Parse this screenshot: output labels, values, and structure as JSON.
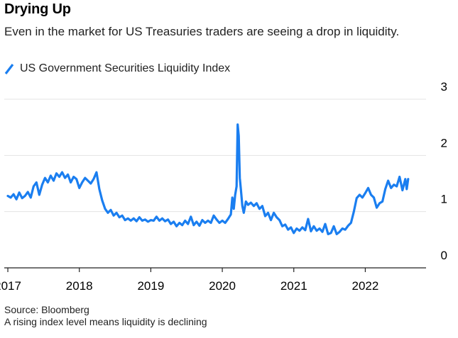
{
  "title": "Drying Up",
  "subtitle": "Even in the market for US Treasuries traders are seeing a drop in liquidity.",
  "source": "Source: Bloomberg",
  "note": "A rising index level means liquidity is declining",
  "colors": {
    "series": "#1a7ef0",
    "grid": "#e3e3e3",
    "axis": "#222222",
    "text": "#000000"
  },
  "chart_data": {
    "type": "line",
    "title": "Drying Up",
    "xlabel": "",
    "ylabel": "",
    "ylim": [
      0,
      3
    ],
    "xlim": [
      2016.95,
      2022.85
    ],
    "y_ticks": [
      0,
      1,
      2,
      3
    ],
    "y_tick_labels": [
      "0",
      "1",
      "2",
      "3"
    ],
    "x_ticks": [
      2017,
      2018,
      2019,
      2020,
      2021,
      2022
    ],
    "x_tick_labels": [
      "2017",
      "2018",
      "2019",
      "2020",
      "2021",
      "2022"
    ],
    "grid": true,
    "legend_position": "top-left",
    "series": [
      {
        "name": "US Government Securities Liquidity Index",
        "color": "#1a7ef0",
        "points": [
          [
            2017.0,
            1.28
          ],
          [
            2017.04,
            1.25
          ],
          [
            2017.08,
            1.31
          ],
          [
            2017.12,
            1.22
          ],
          [
            2017.16,
            1.34
          ],
          [
            2017.2,
            1.24
          ],
          [
            2017.24,
            1.28
          ],
          [
            2017.28,
            1.35
          ],
          [
            2017.32,
            1.25
          ],
          [
            2017.36,
            1.45
          ],
          [
            2017.4,
            1.52
          ],
          [
            2017.44,
            1.3
          ],
          [
            2017.48,
            1.48
          ],
          [
            2017.52,
            1.6
          ],
          [
            2017.56,
            1.52
          ],
          [
            2017.6,
            1.64
          ],
          [
            2017.64,
            1.55
          ],
          [
            2017.68,
            1.68
          ],
          [
            2017.72,
            1.62
          ],
          [
            2017.76,
            1.7
          ],
          [
            2017.8,
            1.6
          ],
          [
            2017.84,
            1.66
          ],
          [
            2017.88,
            1.52
          ],
          [
            2017.92,
            1.62
          ],
          [
            2017.96,
            1.58
          ],
          [
            2018.0,
            1.42
          ],
          [
            2018.04,
            1.52
          ],
          [
            2018.08,
            1.6
          ],
          [
            2018.12,
            1.55
          ],
          [
            2018.16,
            1.5
          ],
          [
            2018.2,
            1.58
          ],
          [
            2018.24,
            1.7
          ],
          [
            2018.28,
            1.4
          ],
          [
            2018.32,
            1.2
          ],
          [
            2018.36,
            1.05
          ],
          [
            2018.4,
            0.98
          ],
          [
            2018.44,
            1.03
          ],
          [
            2018.48,
            0.93
          ],
          [
            2018.52,
            0.98
          ],
          [
            2018.56,
            0.9
          ],
          [
            2018.6,
            0.93
          ],
          [
            2018.64,
            0.85
          ],
          [
            2018.68,
            0.88
          ],
          [
            2018.72,
            0.84
          ],
          [
            2018.76,
            0.88
          ],
          [
            2018.8,
            0.83
          ],
          [
            2018.84,
            0.9
          ],
          [
            2018.88,
            0.84
          ],
          [
            2018.92,
            0.86
          ],
          [
            2018.96,
            0.82
          ],
          [
            2019.0,
            0.85
          ],
          [
            2019.04,
            0.84
          ],
          [
            2019.08,
            0.91
          ],
          [
            2019.12,
            0.84
          ],
          [
            2019.16,
            0.88
          ],
          [
            2019.2,
            0.83
          ],
          [
            2019.24,
            0.86
          ],
          [
            2019.28,
            0.78
          ],
          [
            2019.32,
            0.82
          ],
          [
            2019.36,
            0.74
          ],
          [
            2019.4,
            0.8
          ],
          [
            2019.44,
            0.76
          ],
          [
            2019.48,
            0.84
          ],
          [
            2019.52,
            0.78
          ],
          [
            2019.56,
            0.91
          ],
          [
            2019.6,
            0.76
          ],
          [
            2019.64,
            0.82
          ],
          [
            2019.68,
            0.75
          ],
          [
            2019.72,
            0.85
          ],
          [
            2019.76,
            0.8
          ],
          [
            2019.8,
            0.84
          ],
          [
            2019.84,
            0.8
          ],
          [
            2019.88,
            0.93
          ],
          [
            2019.92,
            0.86
          ],
          [
            2019.96,
            0.8
          ],
          [
            2020.0,
            0.84
          ],
          [
            2020.04,
            0.8
          ],
          [
            2020.08,
            0.87
          ],
          [
            2020.12,
            0.95
          ],
          [
            2020.14,
            1.25
          ],
          [
            2020.16,
            1.05
          ],
          [
            2020.18,
            1.3
          ],
          [
            2020.2,
            1.45
          ],
          [
            2020.215,
            2.55
          ],
          [
            2020.23,
            2.35
          ],
          [
            2020.245,
            1.6
          ],
          [
            2020.26,
            1.4
          ],
          [
            2020.28,
            1.1
          ],
          [
            2020.3,
            0.98
          ],
          [
            2020.33,
            1.18
          ],
          [
            2020.36,
            1.12
          ],
          [
            2020.4,
            1.16
          ],
          [
            2020.44,
            1.1
          ],
          [
            2020.48,
            1.15
          ],
          [
            2020.52,
            1.05
          ],
          [
            2020.56,
            1.1
          ],
          [
            2020.6,
            0.92
          ],
          [
            2020.64,
            0.98
          ],
          [
            2020.68,
            0.85
          ],
          [
            2020.72,
            0.98
          ],
          [
            2020.76,
            0.9
          ],
          [
            2020.8,
            0.85
          ],
          [
            2020.84,
            0.74
          ],
          [
            2020.88,
            0.77
          ],
          [
            2020.92,
            0.68
          ],
          [
            2020.96,
            0.72
          ],
          [
            2021.0,
            0.62
          ],
          [
            2021.04,
            0.7
          ],
          [
            2021.08,
            0.66
          ],
          [
            2021.12,
            0.72
          ],
          [
            2021.16,
            0.67
          ],
          [
            2021.2,
            0.87
          ],
          [
            2021.24,
            0.65
          ],
          [
            2021.28,
            0.74
          ],
          [
            2021.32,
            0.66
          ],
          [
            2021.36,
            0.7
          ],
          [
            2021.4,
            0.64
          ],
          [
            2021.44,
            0.78
          ],
          [
            2021.48,
            0.6
          ],
          [
            2021.52,
            0.62
          ],
          [
            2021.56,
            0.74
          ],
          [
            2021.6,
            0.6
          ],
          [
            2021.64,
            0.64
          ],
          [
            2021.68,
            0.7
          ],
          [
            2021.72,
            0.68
          ],
          [
            2021.76,
            0.75
          ],
          [
            2021.8,
            0.8
          ],
          [
            2021.84,
            1.0
          ],
          [
            2021.88,
            1.24
          ],
          [
            2021.92,
            1.3
          ],
          [
            2021.96,
            1.25
          ],
          [
            2022.0,
            1.33
          ],
          [
            2022.04,
            1.42
          ],
          [
            2022.08,
            1.3
          ],
          [
            2022.12,
            1.25
          ],
          [
            2022.16,
            1.07
          ],
          [
            2022.2,
            1.15
          ],
          [
            2022.24,
            1.18
          ],
          [
            2022.28,
            1.4
          ],
          [
            2022.32,
            1.55
          ],
          [
            2022.36,
            1.42
          ],
          [
            2022.4,
            1.48
          ],
          [
            2022.44,
            1.45
          ],
          [
            2022.48,
            1.62
          ],
          [
            2022.52,
            1.38
          ],
          [
            2022.56,
            1.58
          ],
          [
            2022.58,
            1.4
          ],
          [
            2022.6,
            1.58
          ]
        ]
      }
    ]
  }
}
